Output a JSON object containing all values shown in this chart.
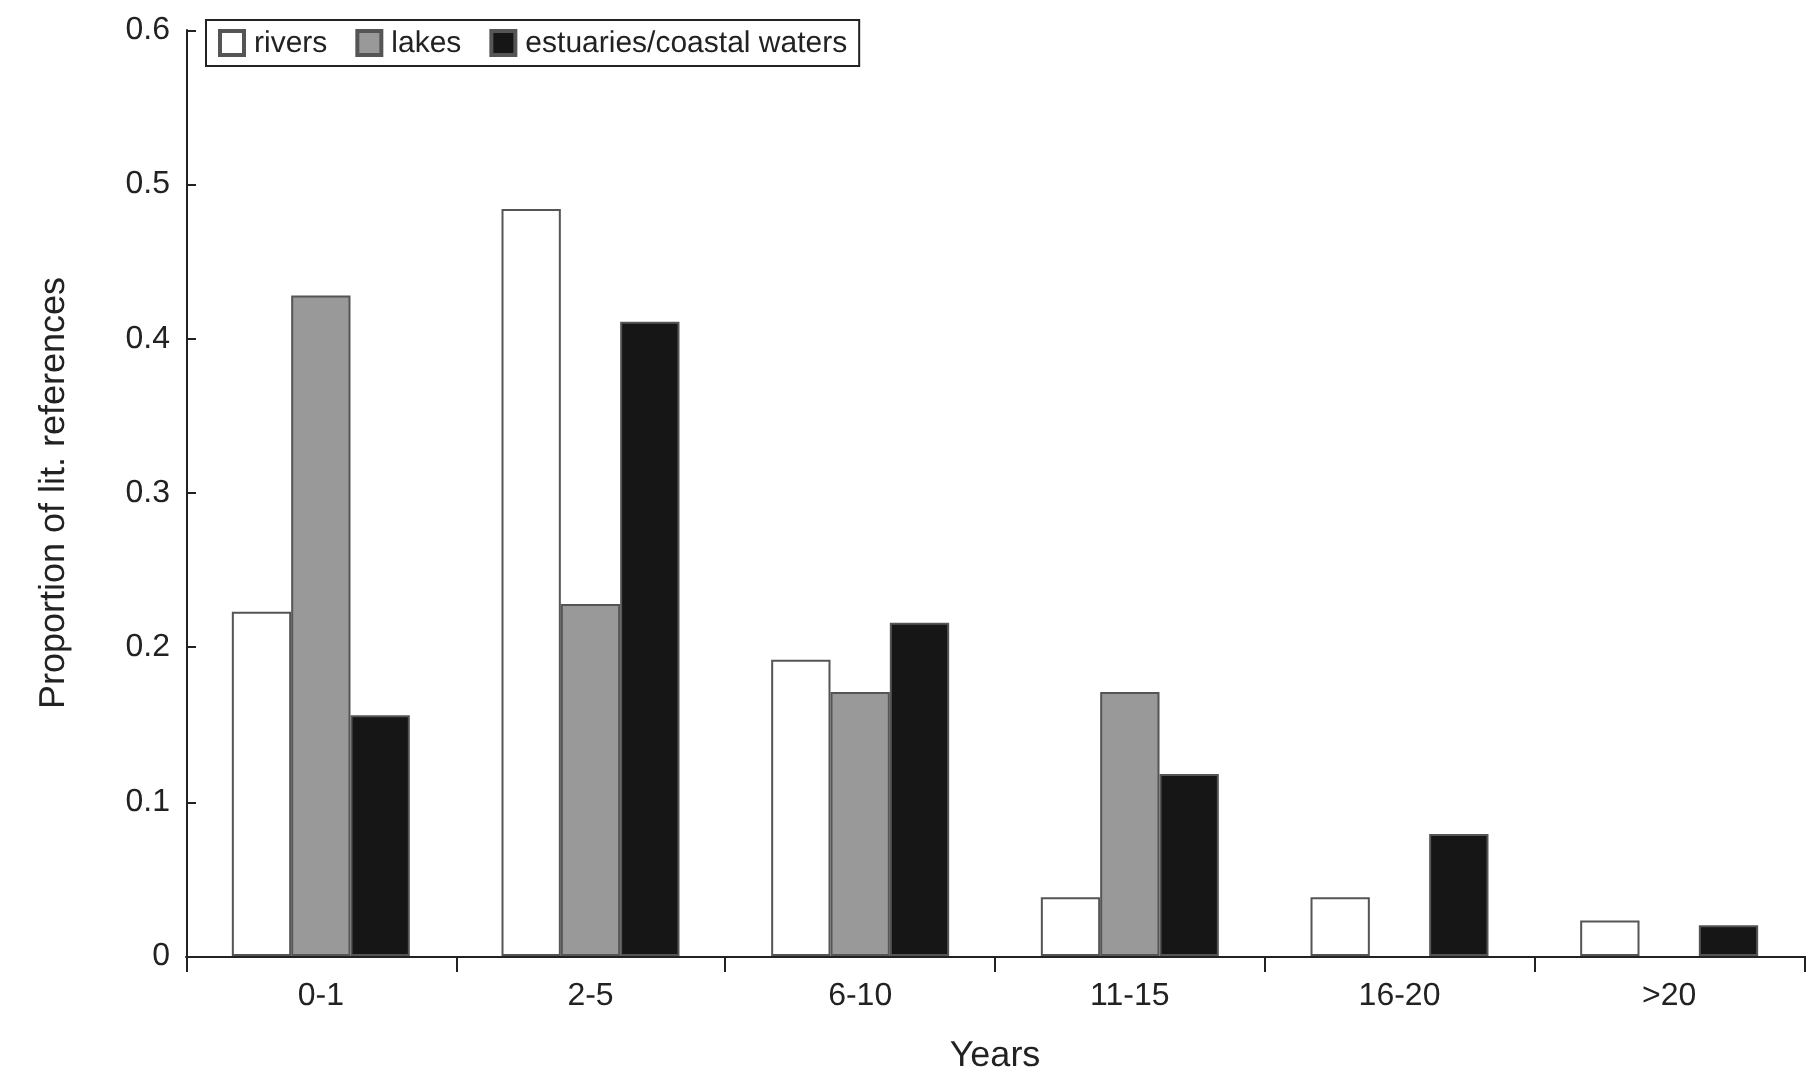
{
  "chart_data": {
    "type": "bar",
    "xlabel": "Years",
    "ylabel": "Proportion of lit. references",
    "categories": [
      "0-1",
      "2-5",
      "6-10",
      "11-15",
      "16-20",
      ">20"
    ],
    "series": [
      {
        "name": "rivers",
        "color": "#ffffff",
        "values": [
          0.223,
          0.484,
          0.192,
          0.038,
          0.038,
          0.023
        ]
      },
      {
        "name": "lakes",
        "color": "#999999",
        "values": [
          0.428,
          0.228,
          0.171,
          0.171,
          null,
          null
        ]
      },
      {
        "name": "estuaries/coastal waters",
        "color": "#161616",
        "values": [
          0.156,
          0.411,
          0.216,
          0.118,
          0.079,
          0.02
        ]
      }
    ],
    "ylim": [
      0,
      0.6
    ],
    "yticks": [
      0,
      0.1,
      0.2,
      0.3,
      0.4,
      0.5,
      0.6
    ],
    "grid": false,
    "legend": "top left"
  }
}
